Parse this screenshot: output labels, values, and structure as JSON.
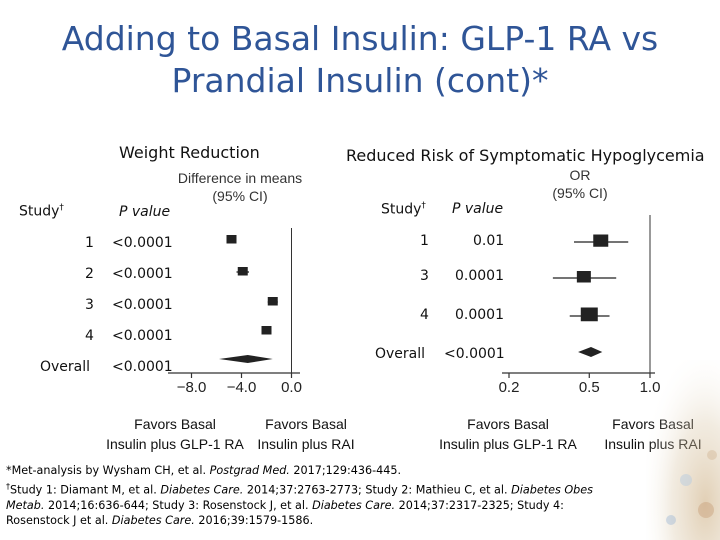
{
  "slide_title_line1": "Adding to Basal Insulin: GLP-1 RA vs",
  "slide_title_line2": "Prandial Insulin (cont)*",
  "chart_data": [
    {
      "type": "forest",
      "title": "Weight Reduction",
      "estimate_header_line1": "Difference in means",
      "estimate_header_line2": "(95% CI)",
      "col_study": "Study",
      "col_study_mark": "†",
      "col_p": "P value",
      "rows": [
        {
          "study": "1",
          "p": "<0.0001",
          "estimate": -4.8,
          "lower": -5.2,
          "upper": -4.4
        },
        {
          "study": "2",
          "p": "<0.0001",
          "estimate": -3.9,
          "lower": -4.4,
          "upper": -3.4
        },
        {
          "study": "3",
          "p": "<0.0001",
          "estimate": -1.5,
          "lower": -1.9,
          "upper": -1.1
        },
        {
          "study": "4",
          "p": "<0.0001",
          "estimate": -2.0,
          "lower": -2.4,
          "upper": -1.6
        }
      ],
      "overall": {
        "study": "Overall",
        "p": "<0.0001",
        "estimate": -3.5,
        "lower": -5.8,
        "upper": -1.5
      },
      "xlim": [
        -9.0,
        1.0
      ],
      "ticks": [
        -8.0,
        -4.0,
        0.0
      ],
      "tick_labels": [
        "−8.0",
        "−4.0",
        "0.0"
      ],
      "reference": 0.0,
      "favors_left": [
        "Favors Basal",
        "Insulin plus GLP-1 RA"
      ],
      "favors_right": [
        "Favors Basal",
        "Insulin plus RAI"
      ]
    },
    {
      "type": "forest",
      "title": "Reduced Risk of Symptomatic Hypoglycemia",
      "estimate_header_line1": "OR",
      "estimate_header_line2": "(95% CI)",
      "col_study": "Study",
      "col_study_mark": "†",
      "col_p": "P value",
      "rows": [
        {
          "study": "1",
          "p": "0.01",
          "estimate": 0.57,
          "lower": 0.42,
          "upper": 0.78
        },
        {
          "study": "3",
          "p": "0.0001",
          "estimate": 0.47,
          "lower": 0.33,
          "upper": 0.68
        },
        {
          "study": "4",
          "p": "0.0001",
          "estimate": 0.5,
          "lower": 0.4,
          "upper": 0.63
        }
      ],
      "overall": {
        "study": "Overall",
        "p": "<0.0001",
        "estimate": 0.51,
        "lower": 0.44,
        "upper": 0.58
      },
      "xlim": [
        0.2,
        1.0
      ],
      "ticks": [
        0.2,
        0.5,
        1.0
      ],
      "tick_labels": [
        "0.2",
        "0.5",
        "1.0"
      ],
      "log_scale": true,
      "reference": 1.0,
      "favors_left": [
        "Favors Basal",
        "Insulin plus GLP-1 RA"
      ],
      "favors_right": [
        "Favors Basal",
        "Insulin plus RAI"
      ]
    }
  ],
  "footnote": {
    "l1_a": "*Met-analysis by Wysham CH, et al. ",
    "l1_b": "Postgrad Med.",
    "l1_c": "  2017;129:436-445.",
    "l2_mark": "†",
    "l2_a": "Study 1: Diamant M, et al. ",
    "l2_b": "Diabetes Care.",
    "l2_c": " 2014;37:2763-2773; Study 2: Mathieu C, et al. ",
    "l2_d": "Diabetes Obes",
    "l3_a": "Metab.",
    "l3_b": " 2014;16:636-644; Study 3: Rosenstock J, et al. ",
    "l3_c": "Diabetes Care.",
    "l3_d": " 2014;37:2317-2325; Study 4:",
    "l4_a": "Rosenstock J et al. ",
    "l4_b": "Diabetes Care.",
    "l4_c": " 2016;39:1579-1586."
  },
  "colors": {
    "title": "#2f5597",
    "marker": "#222222",
    "axis": "#333333"
  }
}
